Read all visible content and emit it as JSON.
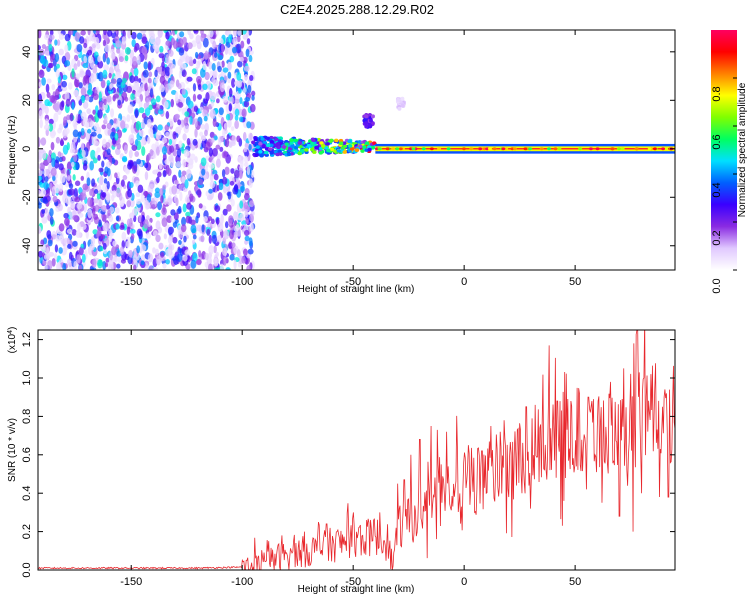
{
  "title": "C2E4.2025.288.12.29.R02",
  "chart_data": [
    {
      "type": "heatmap",
      "title": "C2E4.2025.288.12.29.R02",
      "xlabel": "Height of straight line (km)",
      "ylabel": "Frequency (Hz)",
      "xlim": [
        -192,
        95
      ],
      "ylim": [
        -50,
        49
      ],
      "xticks": [
        "-150",
        "-100",
        "-50",
        "0",
        "50"
      ],
      "yticks": [
        "-40",
        "-20",
        "0",
        "20",
        "40"
      ],
      "colorbar": {
        "label": "Normalized spectral amplitude",
        "range": [
          0.0,
          1.0
        ],
        "ticks": [
          "0.0",
          "0.2",
          "0.4",
          "0.6",
          "0.8"
        ],
        "colormap": [
          "#ffffff",
          "#e0c8ff",
          "#8a2be2",
          "#3a00ff",
          "#0060ff",
          "#00e0ff",
          "#00ff60",
          "#80ff00",
          "#ffff00",
          "#ff8000",
          "#ff0000",
          "#ff0060"
        ]
      },
      "regions": [
        {
          "name": "broadband noise",
          "x": [
            -192,
            -95
          ],
          "y": [
            -50,
            49
          ],
          "amplitude": 0.1
        },
        {
          "name": "onset",
          "x": [
            -95,
            -40
          ],
          "y": [
            -4,
            6
          ],
          "amplitude": 0.45
        },
        {
          "name": "harmonic",
          "x": [
            -40,
            95
          ],
          "y": [
            -1,
            1
          ],
          "amplitude": 0.95
        },
        {
          "name": "artifact",
          "x": [
            -45,
            -41
          ],
          "y": [
            9,
            14
          ],
          "amplitude": 0.3
        },
        {
          "name": "artifact",
          "x": [
            -30,
            -27
          ],
          "y": [
            16,
            21
          ],
          "amplitude": 0.1
        }
      ]
    },
    {
      "type": "line",
      "xlabel": "Height of straight line (km)",
      "ylabel": "SNR (10 * v/v)",
      "y_multiplier": "(x10^4)",
      "xlim": [
        -192,
        95
      ],
      "ylim": [
        0,
        1.25
      ],
      "xticks": [
        "-150",
        "-100",
        "-50",
        "0",
        "50"
      ],
      "yticks": [
        "0.0",
        "0.2",
        "0.4",
        "0.6",
        "0.8",
        "1.0",
        "1.2"
      ],
      "series": [
        {
          "color": "#e8282d",
          "x": [
            -192,
            -180,
            -160,
            -140,
            -120,
            -100,
            -95,
            -90,
            -85,
            -80,
            -75,
            -70,
            -65,
            -60,
            -55,
            -50,
            -45,
            -40,
            -35,
            -32,
            -30,
            -25,
            -20,
            -15,
            -10,
            -5,
            0,
            5,
            10,
            15,
            20,
            25,
            30,
            35,
            40,
            45,
            50,
            55,
            60,
            65,
            70,
            75,
            80,
            85,
            90,
            95
          ],
          "y": [
            0.01,
            0.01,
            0.01,
            0.01,
            0.01,
            0.015,
            0.02,
            0.03,
            0.06,
            0.08,
            0.09,
            0.1,
            0.11,
            0.13,
            0.14,
            0.17,
            0.16,
            0.18,
            0.14,
            0.03,
            0.22,
            0.25,
            0.3,
            0.38,
            0.5,
            0.42,
            0.45,
            0.47,
            0.5,
            0.52,
            0.57,
            0.6,
            0.62,
            0.63,
            0.66,
            0.7,
            0.72,
            0.74,
            0.73,
            0.75,
            0.76,
            0.78,
            0.8,
            0.82,
            0.82,
            0.8
          ],
          "peaks": [
            [
              -98,
              0.05
            ],
            [
              -88,
              0.15
            ],
            [
              -82,
              0.18
            ],
            [
              -72,
              0.2
            ],
            [
              -62,
              0.24
            ],
            [
              -50,
              0.3
            ],
            [
              -44,
              0.26
            ],
            [
              -38,
              0.3
            ],
            [
              -30,
              0.45
            ],
            [
              -27,
              0.47
            ],
            [
              -24,
              0.6
            ],
            [
              -20,
              0.68
            ],
            [
              -15,
              0.75
            ],
            [
              -12,
              0.73
            ],
            [
              -8,
              0.72
            ],
            [
              -3,
              0.62
            ],
            [
              2,
              0.65
            ],
            [
              8,
              0.62
            ],
            [
              12,
              0.75
            ],
            [
              18,
              0.78
            ],
            [
              24,
              0.73
            ],
            [
              28,
              0.85
            ],
            [
              32,
              0.86
            ],
            [
              38,
              0.85
            ],
            [
              42,
              0.88
            ],
            [
              48,
              0.88
            ],
            [
              52,
              0.92
            ],
            [
              56,
              0.9
            ],
            [
              62,
              0.95
            ],
            [
              66,
              0.98
            ],
            [
              72,
              1.05
            ],
            [
              76,
              1.2
            ],
            [
              78,
              1.25
            ],
            [
              81,
              1.0
            ],
            [
              86,
              0.95
            ],
            [
              90,
              0.9
            ],
            [
              94,
              0.88
            ]
          ],
          "troughs": [
            [
              -10,
              0.35
            ],
            [
              10,
              0.4
            ],
            [
              20,
              0.38
            ],
            [
              30,
              0.32
            ],
            [
              45,
              0.36
            ],
            [
              55,
              0.42
            ],
            [
              62,
              0.35
            ],
            [
              70,
              0.28
            ],
            [
              76,
              0.2
            ],
            [
              80,
              0.4
            ],
            [
              88,
              0.38
            ],
            [
              92,
              0.38
            ]
          ]
        }
      ]
    }
  ]
}
